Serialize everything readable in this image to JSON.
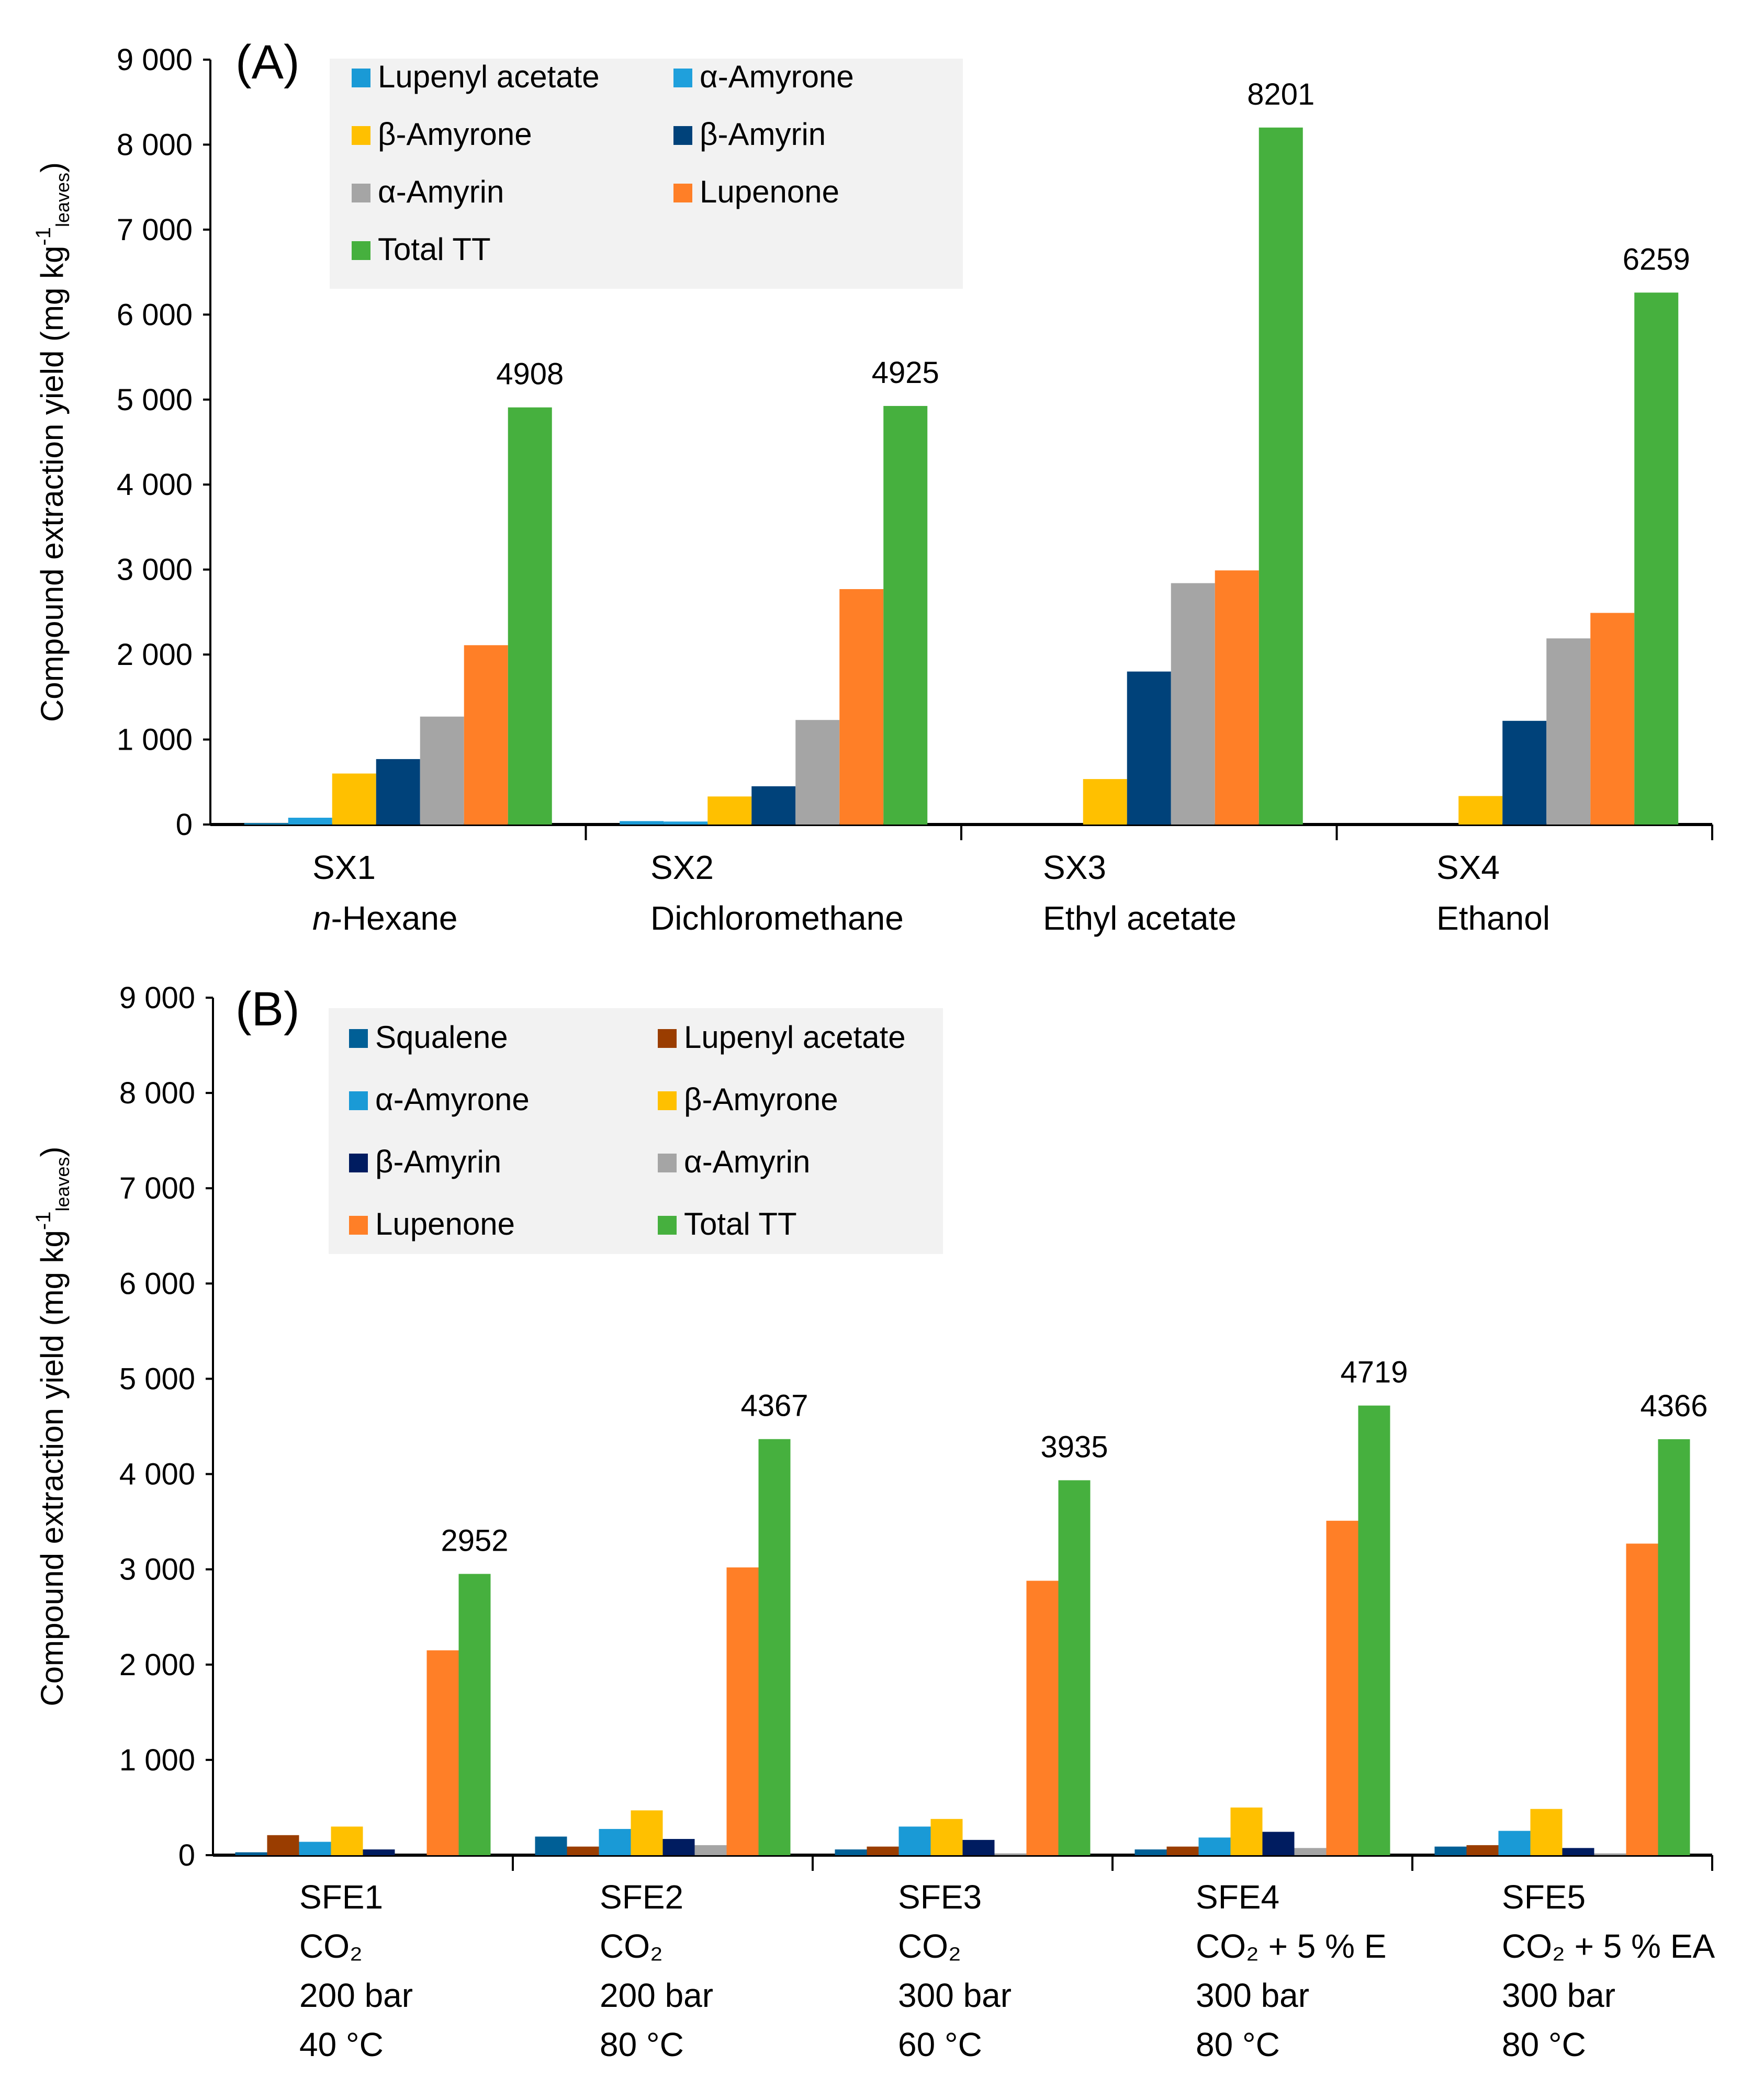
{
  "chart_data": [
    {
      "type": "bar",
      "panel_label": "(A)",
      "ylabel": {
        "main": "Compound extraction yield (mg kg",
        "sup": "-1",
        "sub": "leaves",
        "end": ")"
      },
      "ylim": [
        0,
        9000
      ],
      "yticks": [
        "0",
        "1 000",
        "2 000",
        "3 000",
        "4 000",
        "5 000",
        "6 000",
        "7 000",
        "8 000",
        "9 000"
      ],
      "legend_position": "top-left",
      "categories": [
        [
          "SX1",
          "n-Hexane"
        ],
        [
          "SX2",
          "Dichloromethane"
        ],
        [
          "SX3",
          "Ethyl acetate"
        ],
        [
          "SX4",
          "Ethanol"
        ]
      ],
      "series": [
        {
          "name": "Lupenyl acetate",
          "color": "#1a9ad6",
          "values": [
            15,
            40,
            0,
            0
          ]
        },
        {
          "name": "α-Amyrone",
          "color": "#1fa0dc",
          "values": [
            80,
            35,
            0,
            0
          ]
        },
        {
          "name": "β-Amyrone",
          "color": "#ffc000",
          "values": [
            600,
            330,
            535,
            335
          ]
        },
        {
          "name": "β-Amyrin",
          "color": "#00427a",
          "values": [
            770,
            450,
            1800,
            1220
          ]
        },
        {
          "name": "α-Amyrin",
          "color": "#a5a5a5",
          "values": [
            1270,
            1230,
            2840,
            2190
          ]
        },
        {
          "name": "Lupenone",
          "color": "#ff7f27",
          "values": [
            2110,
            2770,
            2990,
            2490
          ]
        },
        {
          "name": "Total TT",
          "color": "#46b03e",
          "values": [
            4908,
            4925,
            8201,
            6259
          ]
        }
      ],
      "data_labels": [
        "4908",
        "4925",
        "8201",
        "6259"
      ]
    },
    {
      "type": "bar",
      "panel_label": "(B)",
      "ylabel": {
        "main": "Compound extraction yield (mg kg",
        "sup": "-1",
        "sub": "leaves",
        "end": ")"
      },
      "ylim": [
        0,
        9000
      ],
      "yticks": [
        "0",
        "1 000",
        "2 000",
        "3 000",
        "4 000",
        "5 000",
        "6 000",
        "7 000",
        "8 000",
        "9 000"
      ],
      "legend_position": "top-left",
      "categories": [
        [
          "SFE1",
          "CO₂",
          "200 bar",
          "40 °C"
        ],
        [
          "SFE2",
          "CO₂",
          "200 bar",
          "80 °C"
        ],
        [
          "SFE3",
          "CO₂",
          "300 bar",
          "60 °C"
        ],
        [
          "SFE4",
          "CO₂ + 5 % E",
          "300 bar",
          "80 °C"
        ],
        [
          "SFE5",
          "CO₂ + 5 % EA",
          "300 bar",
          "80 °C"
        ]
      ],
      "series": [
        {
          "name": "Squalene",
          "color": "#005f96",
          "values": [
            30,
            195,
            60,
            60,
            90
          ]
        },
        {
          "name": "Lupenyl acetate",
          "color": "#9a3d00",
          "values": [
            210,
            90,
            90,
            90,
            105
          ]
        },
        {
          "name": "α-Amyrone",
          "color": "#1a9ad6",
          "values": [
            140,
            275,
            300,
            185,
            255
          ]
        },
        {
          "name": "β-Amyrone",
          "color": "#ffc000",
          "values": [
            300,
            470,
            380,
            500,
            485
          ]
        },
        {
          "name": "β-Amyrin",
          "color": "#001c60",
          "values": [
            60,
            170,
            160,
            245,
            75
          ]
        },
        {
          "name": "α-Amyrin",
          "color": "#a5a5a5",
          "values": [
            0,
            105,
            15,
            75,
            15
          ]
        },
        {
          "name": "Lupenone",
          "color": "#ff7f27",
          "values": [
            2150,
            3020,
            2880,
            3510,
            3270
          ]
        },
        {
          "name": "Total TT",
          "color": "#46b03e",
          "values": [
            2952,
            4367,
            3935,
            4719,
            4366
          ]
        }
      ],
      "data_labels": [
        "2952",
        "4367",
        "3935",
        "4719",
        "4366"
      ]
    }
  ]
}
